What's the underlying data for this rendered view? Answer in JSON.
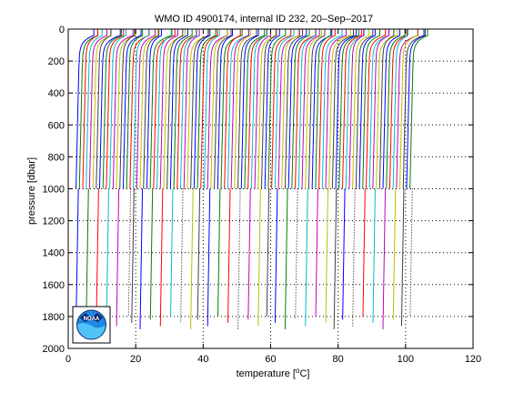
{
  "chart_data": {
    "type": "line",
    "title": "WMO ID 4900174, internal ID 232, 20–Sep–2017",
    "xlabel": "temperature [",
    "xlabel_deg": "o",
    "xlabel_unit": "C]",
    "ylabel": "pressure [dbar]",
    "xlim": [
      0,
      120
    ],
    "ylim": [
      2000,
      0
    ],
    "y_reversed": true,
    "x_ticks": [
      "0",
      "20",
      "40",
      "60",
      "80",
      "100",
      "120"
    ],
    "y_ticks": [
      "0",
      "200",
      "400",
      "600",
      "800",
      "1000",
      "1200",
      "1400",
      "1600",
      "1800",
      "2000"
    ],
    "grid": "dotted",
    "logo": "NOAA",
    "series_colors": [
      "#0000ff",
      "#008000",
      "#ff0000",
      "#00bfbf",
      "#bf00bf",
      "#bfbf00",
      "#404040"
    ],
    "profile_count": 100,
    "profile_offset_start": 3.2,
    "profile_offset_step": 1.0,
    "surface_warming": 5.5,
    "deep_profiles": [
      {
        "x_offset": 3.0
      },
      {
        "x_offset": 6.0
      },
      {
        "x_offset": 9.0
      },
      {
        "x_offset": 12.0
      },
      {
        "x_offset": 15.0
      },
      {
        "x_offset": 18.5
      },
      {
        "x_offset": 19.5
      },
      {
        "x_offset": 22.0
      },
      {
        "x_offset": 25.0
      },
      {
        "x_offset": 28.0
      },
      {
        "x_offset": 31.0
      },
      {
        "x_offset": 34.0
      },
      {
        "x_offset": 37.0
      },
      {
        "x_offset": 39.0
      },
      {
        "x_offset": 42.0
      },
      {
        "x_offset": 45.0
      },
      {
        "x_offset": 48.0
      },
      {
        "x_offset": 51.0
      },
      {
        "x_offset": 54.0
      },
      {
        "x_offset": 57.0
      },
      {
        "x_offset": 59.5
      },
      {
        "x_offset": 62.0
      },
      {
        "x_offset": 65.0
      },
      {
        "x_offset": 68.0
      },
      {
        "x_offset": 71.0
      },
      {
        "x_offset": 74.0
      },
      {
        "x_offset": 77.0
      },
      {
        "x_offset": 79.5
      },
      {
        "x_offset": 82.0
      },
      {
        "x_offset": 85.0
      },
      {
        "x_offset": 88.0
      },
      {
        "x_offset": 91.0
      },
      {
        "x_offset": 94.0
      },
      {
        "x_offset": 97.0
      },
      {
        "x_offset": 99.5
      },
      {
        "x_offset": 102.0
      }
    ]
  }
}
